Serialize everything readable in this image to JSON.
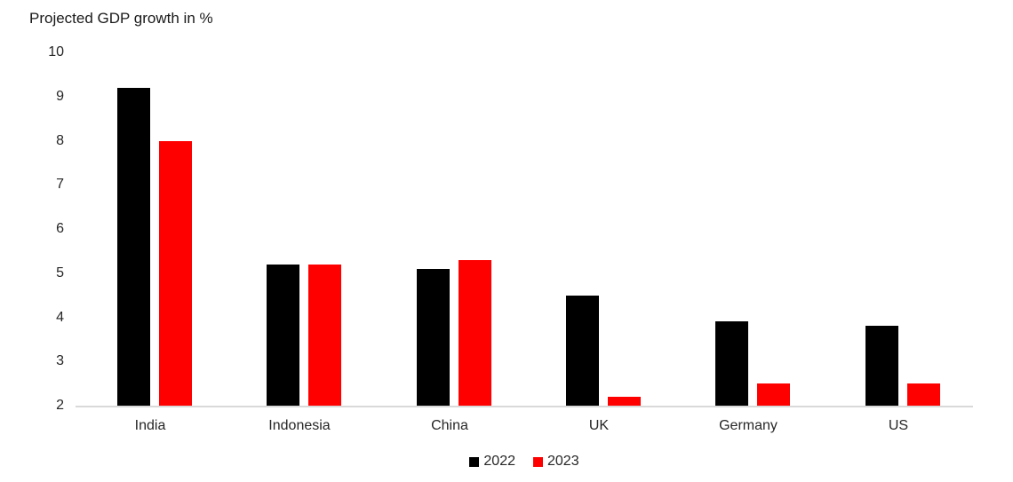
{
  "chart_data": {
    "type": "bar",
    "title": "Projected GDP growth in %",
    "categories": [
      "India",
      "Indonesia",
      "China",
      "UK",
      "Germany",
      "US"
    ],
    "series": [
      {
        "name": "2022",
        "color": "#000000",
        "values": [
          9.2,
          5.2,
          5.1,
          4.5,
          3.9,
          3.8
        ]
      },
      {
        "name": "2023",
        "color": "#fe0000",
        "values": [
          8.0,
          5.2,
          5.3,
          2.2,
          2.5,
          2.5
        ]
      }
    ],
    "xlabel": "",
    "ylabel": "Projected GDP growth in %",
    "ylim": [
      2,
      10
    ],
    "yticks": [
      2,
      3,
      4,
      5,
      6,
      7,
      8,
      9,
      10
    ],
    "grid": false,
    "legend_position": "bottom",
    "colors": {
      "axis_line": "#d9d9d9",
      "text": "#262626",
      "background": "#ffffff"
    }
  }
}
